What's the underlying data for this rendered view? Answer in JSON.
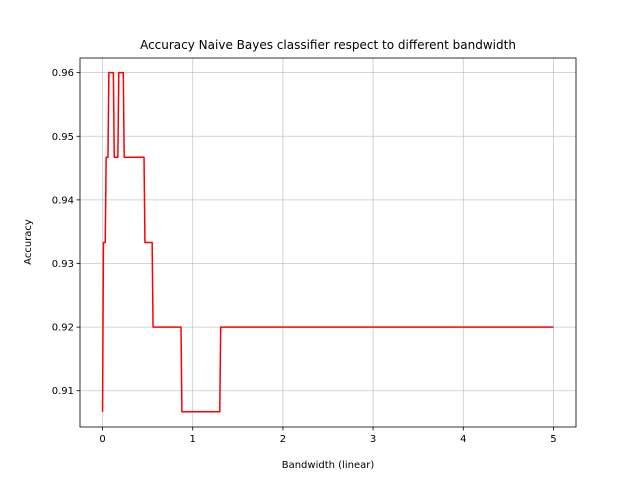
{
  "chart_data": {
    "type": "line",
    "title": "Accuracy Naive Bayes classifier respect to different bandwidth",
    "xlabel": "Bandwidth (linear)",
    "ylabel": "Accuracy",
    "xlim": [
      -0.25,
      5.25
    ],
    "ylim": [
      0.9043,
      0.9623
    ],
    "xticks": [
      0,
      1,
      2,
      3,
      4,
      5
    ],
    "yticks": [
      0.91,
      0.92,
      0.93,
      0.94,
      0.95,
      0.96
    ],
    "xtick_labels": [
      "0",
      "1",
      "2",
      "3",
      "4",
      "5"
    ],
    "ytick_labels": [
      "0.91",
      "0.92",
      "0.93",
      "0.94",
      "0.95",
      "0.96"
    ],
    "grid": true,
    "series": [
      {
        "color": "#ff0000",
        "x": [
          0.0,
          0.01,
          0.03,
          0.04,
          0.06,
          0.07,
          0.12,
          0.13,
          0.17,
          0.18,
          0.23,
          0.24,
          0.46,
          0.47,
          0.55,
          0.56,
          0.87,
          0.88,
          1.3,
          1.31,
          5.0
        ],
        "y": [
          0.9067,
          0.9333,
          0.9333,
          0.9467,
          0.9467,
          0.96,
          0.96,
          0.9467,
          0.9467,
          0.96,
          0.96,
          0.9467,
          0.9467,
          0.9333,
          0.9333,
          0.92,
          0.92,
          0.9067,
          0.9067,
          0.92,
          0.92
        ]
      }
    ]
  }
}
